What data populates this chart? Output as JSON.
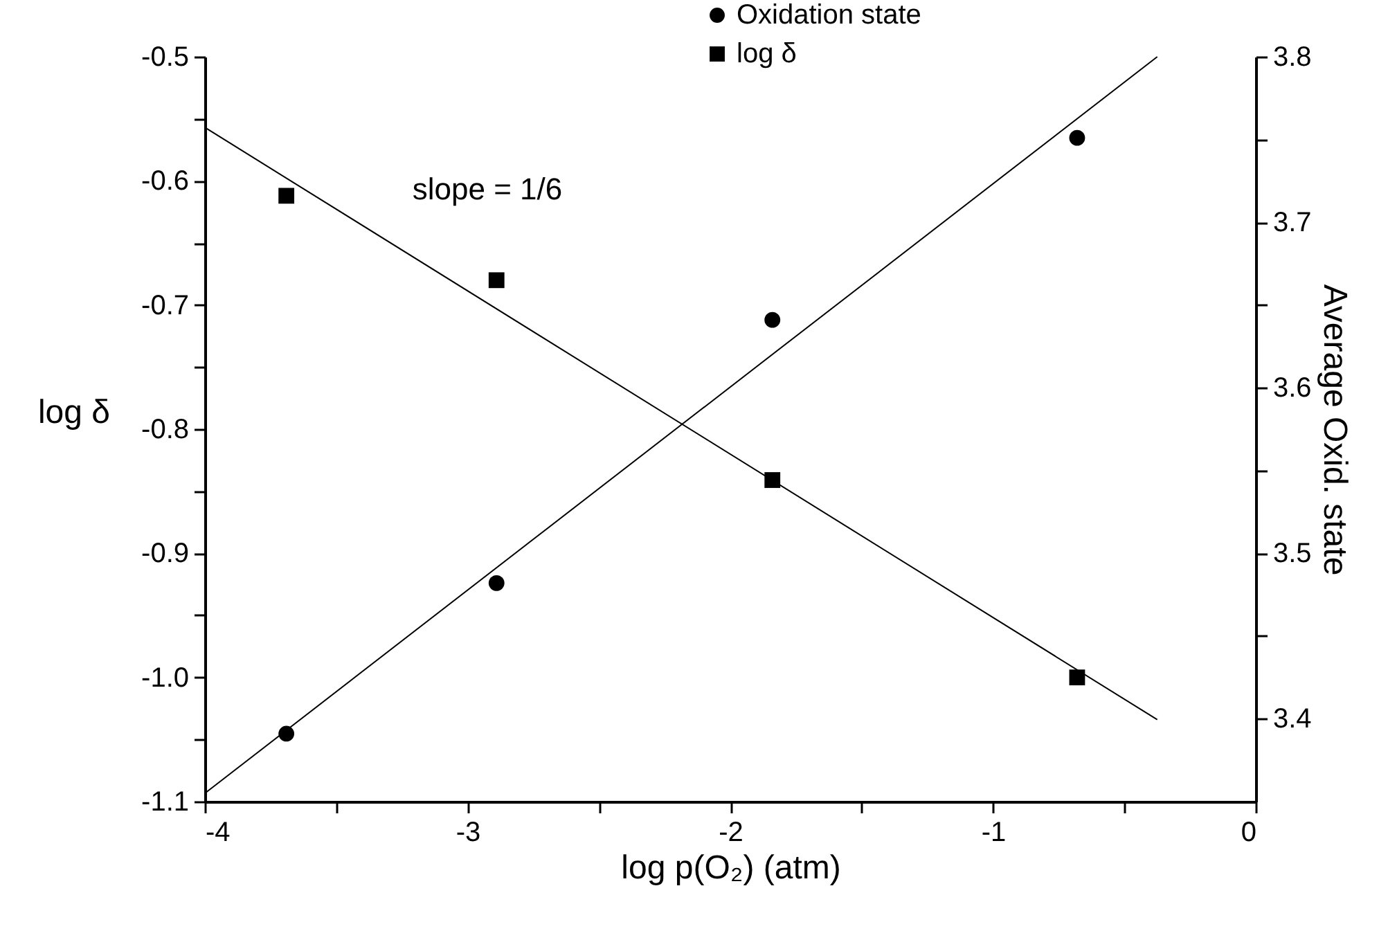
{
  "chart_data": {
    "type": "scatter",
    "xlabel": "log p(O₂) (atm)",
    "ylabel": "log δ",
    "y2label": "Average Oxid. state",
    "annotations": [
      "slope = 1/6"
    ],
    "xlim": [
      -4,
      0
    ],
    "ylim": [
      -1.1,
      -0.5
    ],
    "y2lim": [
      3.35,
      3.8
    ],
    "xticks": [
      -4,
      {
        "value": -3.5,
        "label": null
      },
      -3,
      {
        "value": -2.5,
        "label": null
      },
      -2,
      {
        "value": -1.5,
        "label": null
      },
      -1,
      {
        "value": -0.5,
        "label": null
      },
      0
    ],
    "yticks": [
      {
        "value": -1.1,
        "label": "-1.1"
      },
      {
        "value": -1.05,
        "label": null
      },
      {
        "value": -1.0,
        "label": "-1.0"
      },
      {
        "value": -0.95,
        "label": null
      },
      -0.9,
      {
        "value": -0.85,
        "label": null
      },
      -0.8,
      {
        "value": -0.75,
        "label": null
      },
      -0.7,
      {
        "value": -0.65,
        "label": null
      },
      -0.6,
      {
        "value": -0.55,
        "label": null
      },
      -0.5
    ],
    "y2ticks": [
      3.4,
      {
        "value": 3.45,
        "label": null
      },
      3.5,
      {
        "value": 3.55,
        "label": null
      },
      3.6,
      {
        "value": 3.65,
        "label": null
      },
      3.7,
      {
        "value": 3.75,
        "label": null
      },
      3.8
    ],
    "grid": false,
    "legend": "top",
    "series": [
      {
        "name": "Oxidation state",
        "axis": "y2",
        "marker": "circle",
        "color": "#000000",
        "x": [
          -3.69,
          -2.89,
          -1.84,
          -0.68
        ],
        "values": [
          3.391,
          3.482,
          3.641,
          3.751
        ]
      },
      {
        "name": "log δ",
        "marker": "square",
        "color": "#000000",
        "x": [
          -3.69,
          -2.89,
          -1.84,
          -0.68
        ],
        "values": [
          -0.612,
          -0.68,
          -0.841,
          -1.0
        ]
      },
      {
        "type": "line",
        "axis": "y2",
        "marker": "none",
        "line_style": "solid",
        "color": "#000000",
        "x": [
          -4,
          -0.375
        ],
        "values": [
          3.355,
          3.8
        ]
      },
      {
        "type": "line",
        "marker": "none",
        "line_style": "solid",
        "color": "#000000",
        "x": [
          -4,
          -0.375
        ],
        "values": [
          -0.557,
          -1.034
        ]
      }
    ]
  }
}
